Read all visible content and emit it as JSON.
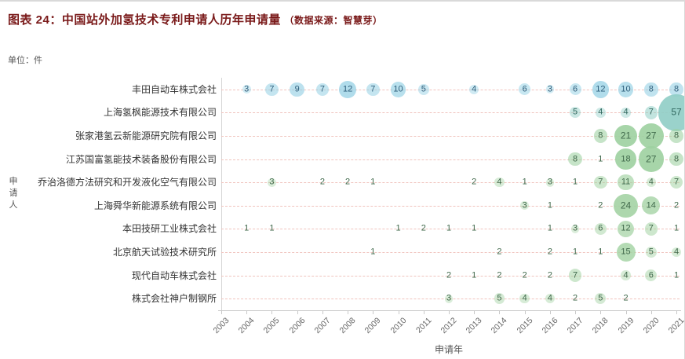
{
  "page": {
    "title": "图表 24：中国站外加氢技术专利申请人历年申请量",
    "source_note": "（数据来源：智慧芽）",
    "unit_label": "单位：件"
  },
  "colors": {
    "title": "#7a1a1a",
    "grid_dash": "#f0c3bd",
    "axis": "#c9c9c9",
    "tick_label": "#666666",
    "row_label": "#333333"
  },
  "chart_data": {
    "type": "scatter",
    "subtype": "bubble-matrix",
    "title": "中国站外加氢技术专利申请人历年申请量",
    "xlabel": "申请年",
    "ylabel": "申请人",
    "unit": "件",
    "x": [
      2003,
      2004,
      2005,
      2006,
      2007,
      2008,
      2009,
      2010,
      2011,
      2012,
      2013,
      2014,
      2015,
      2016,
      2017,
      2018,
      2019,
      2020,
      2021
    ],
    "grid": "horizontal-dashed",
    "series": [
      {
        "name": "丰田自动车株式会社",
        "bubble_color": "#92cfe3",
        "value_color": "#2d5f7c",
        "points": {
          "2004": 3,
          "2005": 7,
          "2006": 9,
          "2007": 7,
          "2008": 12,
          "2009": 7,
          "2010": 10,
          "2011": 5,
          "2013": 4,
          "2015": 6,
          "2016": 3,
          "2017": 6,
          "2018": 12,
          "2019": 10,
          "2020": 8,
          "2021": 8
        }
      },
      {
        "name": "上海氢枫能源技术有限公司",
        "bubble_color": "#8fcdc5",
        "value_color": "#2f675e",
        "points": {
          "2017": 5,
          "2018": 4,
          "2019": 4,
          "2020": 7,
          "2021": 57
        }
      },
      {
        "name": "张家港氢云新能源研究院有限公司",
        "bubble_color": "#9dd0a0",
        "value_color": "#3f684a",
        "points": {
          "2018": 8,
          "2019": 21,
          "2020": 27,
          "2021": 8
        }
      },
      {
        "name": "江苏国富氢能技术装备股份有限公司",
        "bubble_color": "#9dd0a0",
        "value_color": "#3f684a",
        "points": {
          "2017": 8,
          "2018": 1,
          "2019": 18,
          "2020": 27,
          "2021": 8
        }
      },
      {
        "name": "乔治洛德方法研究和开发液化空气有限公司",
        "bubble_color": "#a4d3a4",
        "value_color": "#3f684a",
        "points": {
          "2005": 3,
          "2007": 2,
          "2008": 2,
          "2009": 1,
          "2013": 2,
          "2014": 4,
          "2015": 1,
          "2016": 3,
          "2017": 1,
          "2018": 7,
          "2019": 11,
          "2020": 4,
          "2021": 7
        }
      },
      {
        "name": "上海舜华新能源系统有限公司",
        "bubble_color": "#a4d3a4",
        "value_color": "#3f684a",
        "points": {
          "2015": 3,
          "2016": 1,
          "2018": 2,
          "2019": 24,
          "2020": 14,
          "2021": 2
        }
      },
      {
        "name": "本田技研工业株式会社",
        "bubble_color": "#a4d3a4",
        "value_color": "#3f684a",
        "points": {
          "2004": 1,
          "2005": 1,
          "2010": 1,
          "2011": 2,
          "2012": 1,
          "2013": 1,
          "2016": 1,
          "2017": 3,
          "2018": 6,
          "2019": 12,
          "2020": 7,
          "2021": 1
        }
      },
      {
        "name": "北京航天试验技术研究所",
        "bubble_color": "#a4d3a4",
        "value_color": "#3f684a",
        "points": {
          "2009": 1,
          "2014": 2,
          "2016": 2,
          "2017": 1,
          "2018": 1,
          "2019": 15,
          "2020": 5,
          "2021": 4
        }
      },
      {
        "name": "现代自动车株式会社",
        "bubble_color": "#a4d3a4",
        "value_color": "#3f684a",
        "points": {
          "2012": 2,
          "2013": 1,
          "2014": 2,
          "2015": 2,
          "2016": 2,
          "2017": 7,
          "2019": 4,
          "2020": 6,
          "2021": 1
        }
      },
      {
        "name": "株式会社神户制钢所",
        "bubble_color": "#a4d3a4",
        "value_color": "#3f684a",
        "points": {
          "2012": 3,
          "2014": 5,
          "2015": 4,
          "2016": 4,
          "2017": 2,
          "2018": 5,
          "2019": 2
        }
      }
    ]
  }
}
